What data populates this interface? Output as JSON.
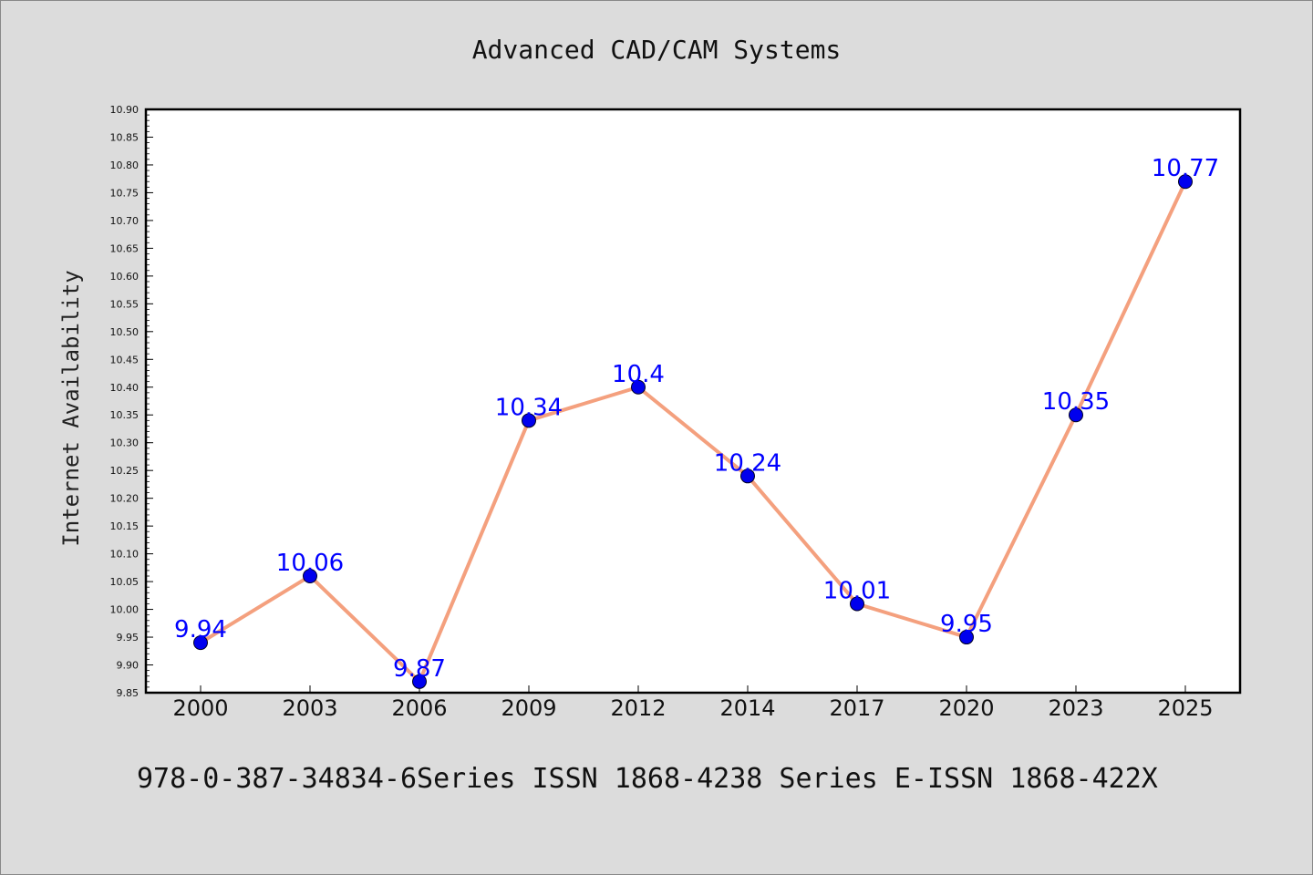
{
  "figure": {
    "title": "Advanced CAD/CAM Systems",
    "footer": "978-0-387-34834-6Series ISSN 1868-4238 Series E-ISSN 1868-422X"
  },
  "chart_data": {
    "type": "line",
    "title": "Advanced CAD/CAM Systems",
    "xlabel": "",
    "ylabel": "Internet Availability",
    "categories": [
      "2000",
      "2003",
      "2006",
      "2009",
      "2012",
      "2014",
      "2017",
      "2020",
      "2023",
      "2025"
    ],
    "series": [
      {
        "values": [
          9.94,
          10.06,
          9.87,
          10.34,
          10.4,
          10.24,
          10.01,
          9.95,
          10.35,
          10.77
        ],
        "labels": [
          "9.94",
          "10.06",
          "9.87",
          "10.34",
          "10.4",
          "10.24",
          "10.01",
          "9.95",
          "10.35",
          "10.77"
        ]
      }
    ],
    "ylim": [
      9.85,
      10.9
    ],
    "yticks": [
      "9.85",
      "9.90",
      "9.95",
      "10.00",
      "10.05",
      "10.10",
      "10.15",
      "10.20",
      "10.25",
      "10.30",
      "10.35",
      "10.40",
      "10.45",
      "10.50",
      "10.55",
      "10.60",
      "10.65",
      "10.70",
      "10.75",
      "10.80",
      "10.85",
      "10.90"
    ],
    "grid": false,
    "legend": "none",
    "colors": {
      "line": "#f4a07e",
      "marker": "#0000ee",
      "label": "#0000ff",
      "plot_background": "#ffffff",
      "figure_background": "#dcdcdc"
    }
  }
}
